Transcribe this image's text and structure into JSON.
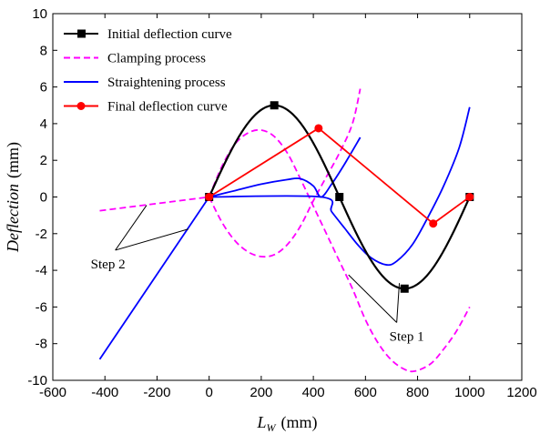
{
  "chart_data": {
    "type": "line",
    "xlabel": {
      "main": "L",
      "sub": "W",
      "unit": "(mm)"
    },
    "ylabel": {
      "main": "Deflection",
      "unit": "(mm)"
    },
    "xlim": [
      -600,
      1200
    ],
    "ylim": [
      -10,
      10
    ],
    "x_ticks": [
      -600,
      -400,
      -200,
      0,
      200,
      400,
      600,
      800,
      1000,
      1200
    ],
    "y_ticks": [
      -10,
      -8,
      -6,
      -4,
      -2,
      0,
      2,
      4,
      6,
      8,
      10
    ],
    "grid": false,
    "legend_position": "top-left",
    "series": [
      {
        "name": "Initial deflection curve",
        "color": "#000000",
        "style": "solid",
        "marker": "square",
        "curve": "sine",
        "amplitude": 5,
        "period": 1000,
        "x_range": [
          0,
          1000
        ],
        "markers": [
          [
            0,
            0
          ],
          [
            250,
            5
          ],
          [
            500,
            0
          ],
          [
            750,
            -5
          ],
          [
            1000,
            0
          ]
        ]
      },
      {
        "name": "Clamping process",
        "color": "#ff00ff",
        "style": "dashed",
        "marker": "none",
        "segments": [
          {
            "kind": "line",
            "points": [
              [
                -420,
                -0.75
              ],
              [
                0,
                0
              ]
            ]
          },
          {
            "kind": "curve",
            "points": [
              [
                0,
                0
              ],
              [
                50,
                1.7
              ],
              [
                100,
                2.9
              ],
              [
                150,
                3.5
              ],
              [
                200,
                3.65
              ],
              [
                250,
                3.3
              ],
              [
                300,
                2.4
              ],
              [
                350,
                1.0
              ],
              [
                400,
                -0.5
              ],
              [
                450,
                -2.0
              ],
              [
                500,
                -3.5
              ],
              [
                550,
                -5.0
              ],
              [
                600,
                -6.7
              ],
              [
                650,
                -8.0
              ],
              [
                700,
                -8.9
              ],
              [
                750,
                -9.4
              ],
              [
                790,
                -9.5
              ],
              [
                850,
                -9.1
              ],
              [
                900,
                -8.3
              ],
              [
                950,
                -7.3
              ],
              [
                1000,
                -6.0
              ]
            ]
          },
          {
            "kind": "curve",
            "points": [
              [
                0,
                0
              ],
              [
                50,
                -1.4
              ],
              [
                100,
                -2.4
              ],
              [
                150,
                -3.0
              ],
              [
                200,
                -3.25
              ],
              [
                250,
                -3.15
              ],
              [
                300,
                -2.6
              ],
              [
                350,
                -1.6
              ],
              [
                400,
                -0.2
              ],
              [
                450,
                1.1
              ],
              [
                500,
                2.4
              ],
              [
                550,
                4.0
              ],
              [
                580,
                5.9
              ]
            ]
          }
        ]
      },
      {
        "name": "Straightening process",
        "color": "#0000ff",
        "style": "solid",
        "marker": "none",
        "segments": [
          {
            "kind": "line",
            "points": [
              [
                -420,
                -8.85
              ],
              [
                0,
                0
              ]
            ]
          },
          {
            "kind": "curve",
            "points": [
              [
                0,
                0
              ],
              [
                430,
                0
              ],
              [
                470,
                -0.8
              ],
              [
                520,
                -1.7
              ],
              [
                570,
                -2.6
              ],
              [
                620,
                -3.3
              ],
              [
                680,
                -3.7
              ],
              [
                720,
                -3.5
              ],
              [
                780,
                -2.6
              ],
              [
                840,
                -1.1
              ],
              [
                900,
                0.6
              ],
              [
                960,
                2.7
              ],
              [
                1000,
                4.9
              ]
            ]
          },
          {
            "kind": "curve",
            "points": [
              [
                0,
                0
              ],
              [
                100,
                0.35
              ],
              [
                200,
                0.7
              ],
              [
                300,
                0.95
              ],
              [
                350,
                1.0
              ],
              [
                400,
                0.6
              ],
              [
                430,
                0
              ],
              [
                470,
                0.7
              ],
              [
                520,
                1.8
              ],
              [
                580,
                3.25
              ]
            ]
          }
        ]
      },
      {
        "name": "Final deflection curve",
        "color": "#ff0000",
        "style": "solid",
        "marker": "circle",
        "x": [
          0,
          420,
          860,
          1000
        ],
        "y": [
          0,
          3.75,
          -1.45,
          0
        ]
      }
    ],
    "annotations": [
      {
        "text": "Step 1",
        "anchor": [
          720,
          -6.85
        ],
        "targets": [
          [
            535,
            -4.25
          ],
          [
            730,
            -4.7
          ]
        ]
      },
      {
        "text": "Step 2",
        "anchor": [
          -360,
          -2.9
        ],
        "targets": [
          [
            -240,
            -0.45
          ],
          [
            -80,
            -1.75
          ]
        ]
      }
    ]
  }
}
